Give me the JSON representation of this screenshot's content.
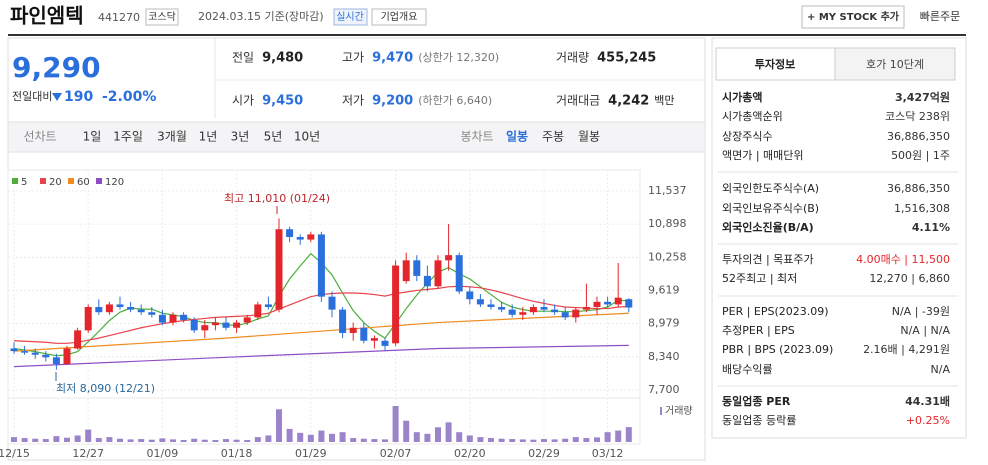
{
  "header": {
    "title": "파인엠텍",
    "code": "441270",
    "market": "코스닥",
    "date": "2024.03.15 기준(장마감)",
    "realtime": "실시간",
    "overview": "기업개요",
    "mystock": "+ MY STOCK 추가",
    "quick_order": "빠른주문"
  },
  "quote": {
    "price": "9,290",
    "change_label": "전일대비",
    "change": "190",
    "rate": "-2.00%",
    "items": [
      {
        "label": "전일",
        "value": "9,480"
      },
      {
        "label": "고가",
        "value": "9,470",
        "note": "(상한가 12,320)"
      },
      {
        "label": "거래량",
        "value": "455,245"
      },
      {
        "label": "시가",
        "value": "9,450"
      },
      {
        "label": "저가",
        "value": "9,200",
        "note": "(하한가 6,640)"
      },
      {
        "label": "거래대금",
        "value": "4,242",
        "unit": "백만"
      }
    ]
  },
  "tabs": {
    "line": [
      "선차트",
      "1일",
      "1주일",
      "3개월",
      "1년",
      "3년",
      "5년",
      "10년"
    ],
    "candle": [
      "봉차트",
      "일봉",
      "주봉",
      "월봉"
    ]
  },
  "chart_data": {
    "type": "candlestick",
    "up_color": "#e3262b",
    "down_color": "#2a6fdb",
    "categories": [
      "12/15",
      null,
      null,
      null,
      null,
      null,
      null,
      "12/27",
      null,
      null,
      null,
      null,
      null,
      null,
      "01/09",
      null,
      null,
      null,
      null,
      null,
      null,
      "01/18",
      null,
      null,
      null,
      null,
      null,
      null,
      "01/29",
      null,
      null,
      null,
      null,
      null,
      null,
      null,
      "02/07",
      null,
      null,
      null,
      null,
      null,
      null,
      "02/20",
      null,
      null,
      null,
      null,
      null,
      null,
      "02/29",
      null,
      null,
      null,
      null,
      null,
      "03/12",
      null,
      null
    ],
    "ohlc": [
      [
        8500,
        8620,
        8400,
        8450
      ],
      [
        8450,
        8550,
        8380,
        8420
      ],
      [
        8420,
        8500,
        8300,
        8380
      ],
      [
        8380,
        8450,
        8250,
        8330
      ],
      [
        8330,
        8400,
        8090,
        8200
      ],
      [
        8200,
        8550,
        8180,
        8500
      ],
      [
        8500,
        8900,
        8480,
        8850
      ],
      [
        8850,
        9350,
        8800,
        9300
      ],
      [
        9300,
        9450,
        9150,
        9200
      ],
      [
        9200,
        9400,
        9150,
        9350
      ],
      [
        9350,
        9500,
        9250,
        9300
      ],
      [
        9300,
        9400,
        9200,
        9250
      ],
      [
        9250,
        9350,
        9150,
        9200
      ],
      [
        9200,
        9300,
        9100,
        9150
      ],
      [
        9150,
        9250,
        8950,
        9000
      ],
      [
        9000,
        9200,
        8950,
        9150
      ],
      [
        9150,
        9200,
        9000,
        9050
      ],
      [
        9050,
        9100,
        8800,
        8850
      ],
      [
        8850,
        9050,
        8700,
        8950
      ],
      [
        8950,
        9100,
        8850,
        9000
      ],
      [
        9000,
        9100,
        8850,
        8900
      ],
      [
        8900,
        9050,
        8800,
        9000
      ],
      [
        9000,
        9150,
        8950,
        9100
      ],
      [
        9100,
        9400,
        9050,
        9350
      ],
      [
        9350,
        9500,
        9250,
        9300
      ],
      [
        9250,
        11010,
        9200,
        10800
      ],
      [
        10800,
        10850,
        10550,
        10650
      ],
      [
        10650,
        10700,
        10500,
        10600
      ],
      [
        10600,
        10750,
        10550,
        10700
      ],
      [
        10700,
        10750,
        9400,
        9500
      ],
      [
        9500,
        9600,
        9100,
        9250
      ],
      [
        9250,
        9300,
        8700,
        8800
      ],
      [
        8800,
        9000,
        8650,
        8900
      ],
      [
        8900,
        9000,
        8600,
        8650
      ],
      [
        8650,
        8750,
        8500,
        8700
      ],
      [
        8650,
        8700,
        8450,
        8550
      ],
      [
        8600,
        10200,
        8550,
        10100
      ],
      [
        9800,
        10350,
        9750,
        10200
      ],
      [
        10200,
        10300,
        9800,
        9900
      ],
      [
        9900,
        10100,
        9600,
        9700
      ],
      [
        9700,
        10300,
        9650,
        10200
      ],
      [
        10200,
        10900,
        10000,
        10300
      ],
      [
        10300,
        10350,
        9550,
        9600
      ],
      [
        9600,
        9700,
        9350,
        9450
      ],
      [
        9450,
        9550,
        9300,
        9350
      ],
      [
        9350,
        9450,
        9250,
        9300
      ],
      [
        9300,
        9400,
        9200,
        9250
      ],
      [
        9250,
        9350,
        9100,
        9150
      ],
      [
        9150,
        9300,
        9050,
        9200
      ],
      [
        9200,
        9350,
        9150,
        9300
      ],
      [
        9300,
        9450,
        9200,
        9250
      ],
      [
        9250,
        9350,
        9150,
        9200
      ],
      [
        9200,
        9300,
        9050,
        9100
      ],
      [
        9100,
        9300,
        9000,
        9250
      ],
      [
        9250,
        9750,
        9200,
        9300
      ],
      [
        9300,
        9500,
        9150,
        9400
      ],
      [
        9400,
        9500,
        9300,
        9350
      ],
      [
        9350,
        10150,
        9300,
        9480
      ],
      [
        9450,
        9470,
        9200,
        9290
      ]
    ],
    "series": [
      {
        "name": "5",
        "color": "#4caf3c",
        "values": [
          8500,
          8470,
          8440,
          8400,
          8360,
          8380,
          8440,
          8630,
          8830,
          9040,
          9200,
          9280,
          9260,
          9260,
          9180,
          9150,
          9110,
          9040,
          9000,
          9000,
          8960,
          8940,
          8990,
          9070,
          9130,
          9510,
          9840,
          10090,
          10330,
          10150,
          9920,
          9570,
          9230,
          9000,
          8830,
          8700,
          8980,
          9270,
          9530,
          9760,
          9970,
          10060,
          9940,
          9840,
          9690,
          9540,
          9390,
          9300,
          9250,
          9220,
          9220,
          9220,
          9210,
          9210,
          9230,
          9250,
          9300,
          9430,
          9420
        ]
      },
      {
        "name": "20",
        "color": "#e8434a",
        "values": [
          8650,
          8640,
          8630,
          8620,
          8600,
          8600,
          8620,
          8660,
          8700,
          8750,
          8800,
          8850,
          8900,
          8940,
          8980,
          9010,
          9040,
          9060,
          9080,
          9100,
          9110,
          9120,
          9130,
          9150,
          9180,
          9260,
          9340,
          9420,
          9500,
          9540,
          9560,
          9570,
          9570,
          9560,
          9540,
          9510,
          9560,
          9590,
          9620,
          9640,
          9660,
          9690,
          9700,
          9690,
          9670,
          9630,
          9580,
          9520,
          9460,
          9410,
          9370,
          9330,
          9300,
          9290,
          9280,
          9270,
          9270,
          9300,
          9310
        ]
      },
      {
        "name": "60",
        "color": "#f08c1e",
        "x": [
          0,
          20,
          40,
          58
        ],
        "values": [
          8450,
          8700,
          9000,
          9180
        ]
      },
      {
        "name": "120",
        "color": "#8e4fc6",
        "x": [
          0,
          20,
          40,
          58
        ],
        "values": [
          8150,
          8330,
          8500,
          8560
        ]
      }
    ],
    "ylim": [
      7700,
      11537
    ],
    "yticks": [
      {
        "value": 11537,
        "label": "11,537"
      },
      {
        "value": 10898,
        "label": "10,898"
      },
      {
        "value": 10258,
        "label": "10,258"
      },
      {
        "value": 9619,
        "label": "9,619"
      },
      {
        "value": 8979,
        "label": "8,979"
      },
      {
        "value": 8340,
        "label": "8,340"
      },
      {
        "value": 7700,
        "label": "7,700"
      }
    ],
    "high_label": "최고 11,010 (01/24)",
    "low_label": "최저 8,090 (12/21)",
    "volume": {
      "label": "거래량",
      "color": "#9b84c9",
      "ylim": [
        0,
        1100000
      ],
      "values": [
        150000,
        120000,
        100000,
        90000,
        180000,
        130000,
        200000,
        380000,
        120000,
        150000,
        100000,
        80000,
        90000,
        70000,
        110000,
        80000,
        60000,
        100000,
        70000,
        60000,
        90000,
        70000,
        60000,
        150000,
        200000,
        1000000,
        400000,
        280000,
        220000,
        350000,
        250000,
        300000,
        120000,
        100000,
        90000,
        80000,
        1100000,
        650000,
        300000,
        250000,
        450000,
        600000,
        300000,
        200000,
        150000,
        120000,
        100000,
        90000,
        80000,
        70000,
        90000,
        80000,
        100000,
        150000,
        120000,
        140000,
        300000,
        350000,
        455245
      ]
    }
  },
  "side": {
    "tabs": [
      "투자정보",
      "호가 10단계"
    ],
    "rows": [
      {
        "label": "시가총액",
        "value": "3,427억원"
      },
      {
        "label": "시가총액순위",
        "value": "코스닥 238위"
      },
      {
        "label": "상장주식수",
        "value": "36,886,350"
      },
      {
        "label": "액면가 | 매매단위",
        "value": "500원 | 1주"
      },
      {
        "label": "외국인한도주식수(A)",
        "value": "36,886,350"
      },
      {
        "label": "외국인보유주식수(B)",
        "value": "1,516,308"
      },
      {
        "label": "외국인소진율(B/A)",
        "value": "4.11%"
      },
      {
        "label": "투자의견 | 목표주가",
        "value": "4.00매수 | 11,500"
      },
      {
        "label": "52주최고 | 최저",
        "value": "12,270 | 6,860"
      },
      {
        "label": "PER | EPS(2023.09)",
        "value": "N/A | -39원"
      },
      {
        "label": "추정PER | EPS",
        "value": "N/A | N/A"
      },
      {
        "label": "PBR | BPS (2023.09)",
        "value": "2.16배 | 4,291원"
      },
      {
        "label": "배당수익률",
        "value": "N/A"
      },
      {
        "label": "동일업종 PER",
        "value": "44.31배"
      },
      {
        "label": "동일업종 등락률",
        "value": "+0.25%"
      }
    ]
  }
}
